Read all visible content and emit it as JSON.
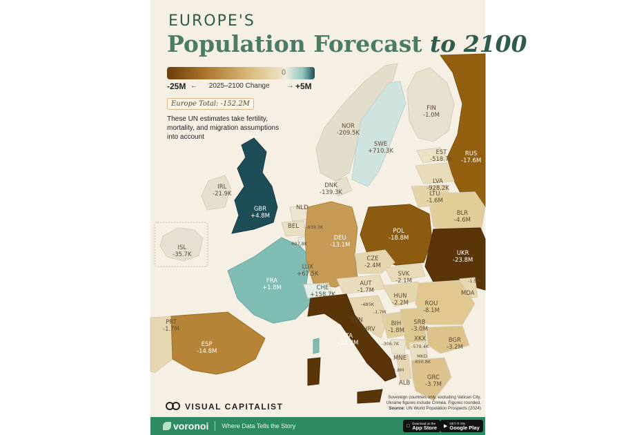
{
  "title": {
    "line1": "EUROPE'S",
    "line2_main": "Population Forecast",
    "line2_italic": "to 2100"
  },
  "legend": {
    "min": "-25M",
    "zero": "0",
    "max": "+5M",
    "caption": "2025–2100 Change",
    "arrow_left": "←",
    "arrow_right": "→"
  },
  "total": "Europe Total: -152.2M",
  "note": "These UN estimates take fertility, mortality, and migration assumptions into account",
  "countries": [
    {
      "code": "NOR",
      "value": "-209.5K",
      "change_millions": -0.2095
    },
    {
      "code": "SWE",
      "value": "+710.3K",
      "change_millions": 0.7103
    },
    {
      "code": "FIN",
      "value": "-1.0M",
      "change_millions": -1.0
    },
    {
      "code": "RUS",
      "value": "-17.6M",
      "change_millions": -17.6
    },
    {
      "code": "EST",
      "value": "-518.7K",
      "change_millions": -0.5187
    },
    {
      "code": "LVA",
      "value": "-928.2K",
      "change_millions": -0.9282
    },
    {
      "code": "LTU",
      "value": "-1.6M",
      "change_millions": -1.6
    },
    {
      "code": "BLR",
      "value": "-4.6M",
      "change_millions": -4.6
    },
    {
      "code": "DNK",
      "value": "-139.3K",
      "change_millions": -0.1393
    },
    {
      "code": "IRL",
      "value": "-21.9K",
      "change_millions": -0.0219
    },
    {
      "code": "GBR",
      "value": "+4.8M",
      "change_millions": 4.8
    },
    {
      "code": "ISL",
      "value": "-35.7K",
      "change_millions": -0.0357
    },
    {
      "code": "NLD",
      "value": "",
      "change_millions": null
    },
    {
      "code": "BEL",
      "value": "",
      "change_millions": null
    },
    {
      "code": "",
      "value": "-839.3K",
      "change_millions": -0.8393
    },
    {
      "code": "",
      "value": "-697.8K",
      "change_millions": -0.6978
    },
    {
      "code": "DEU",
      "value": "-13.1M",
      "change_millions": -13.1
    },
    {
      "code": "POL",
      "value": "-18.8M",
      "change_millions": -18.8
    },
    {
      "code": "UKR",
      "value": "-23.8M",
      "change_millions": -23.8
    },
    {
      "code": "CZE",
      "value": "-2.4M",
      "change_millions": -2.4
    },
    {
      "code": "SVK",
      "value": "-2.1M",
      "change_millions": -2.1
    },
    {
      "code": "LUX",
      "value": "+67.5K",
      "change_millions": 0.0675
    },
    {
      "code": "FRA",
      "value": "+1.8M",
      "change_millions": 1.8
    },
    {
      "code": "CHE",
      "value": "+158.7K",
      "change_millions": 0.1587
    },
    {
      "code": "AUT",
      "value": "-1.7M",
      "change_millions": -1.7
    },
    {
      "code": "HUN",
      "value": "-2.2M",
      "change_millions": -2.2
    },
    {
      "code": "",
      "value": "-1.5M",
      "change_millions": -1.5
    },
    {
      "code": "MDA",
      "value": "",
      "change_millions": null
    },
    {
      "code": "ROU",
      "value": "-8.1M",
      "change_millions": -8.1
    },
    {
      "code": "",
      "value": "-485K",
      "change_millions": -0.485
    },
    {
      "code": "",
      "value": "-1.7M",
      "change_millions": -1.7
    },
    {
      "code": "SVN",
      "value": "",
      "change_millions": null
    },
    {
      "code": "HRV",
      "value": "",
      "change_millions": null
    },
    {
      "code": "BIH",
      "value": "-1.8M",
      "change_millions": -1.8
    },
    {
      "code": "SRB",
      "value": "-3.0M",
      "change_millions": -3.0
    },
    {
      "code": "PRT",
      "value": "-1.7M",
      "change_millions": -1.7
    },
    {
      "code": "ESP",
      "value": "-14.8M",
      "change_millions": -14.8
    },
    {
      "code": "ITA",
      "value": "-23.8M",
      "change_millions": -23.8
    },
    {
      "code": "XKX",
      "value": "",
      "change_millions": null
    },
    {
      "code": "",
      "value": "-306.7K",
      "change_millions": -0.3067
    },
    {
      "code": "",
      "value": "-579.4K",
      "change_millions": -0.5794
    },
    {
      "code": "MKD",
      "value": "-850.8K",
      "change_millions": -0.8508
    },
    {
      "code": "BGR",
      "value": "-3.2M",
      "change_millions": -3.2
    },
    {
      "code": "MNE",
      "value": "",
      "change_millions": null
    },
    {
      "code": "",
      "value": "-1.8M",
      "change_millions": -1.8
    },
    {
      "code": "ALB",
      "value": "",
      "change_millions": null
    },
    {
      "code": "GRC",
      "value": "-3.7M",
      "change_millions": -3.7
    }
  ],
  "source": {
    "line1": "Sovereign countries only, excluding Vatican City.",
    "line2": "Ukraine figures include Crimea. Figures rounded.",
    "label": "Source:",
    "text": "UN World Population Prospects (2024)"
  },
  "brand": {
    "name": "VISUAL CAPITALIST"
  },
  "footer": {
    "logo": "voronoi",
    "logo_sub": "BY VISUAL CAPITALIST",
    "tagline": "Where Data Tells the Story",
    "appstore_sub": "Download on the",
    "appstore": "App Store",
    "gplay_sub": "GET IT ON",
    "gplay": "Google Play"
  },
  "colors": {
    "background": "#f6efe3",
    "footer": "#2e8a63",
    "positive_strong": "#1d4d57",
    "positive_mid": "#7fbdb4",
    "neutral": "#e7e2d4",
    "neg_light": "#e8d7ae",
    "neg_mid": "#c59a54",
    "neg_strong": "#93600f",
    "neg_extreme": "#5a3508"
  }
}
